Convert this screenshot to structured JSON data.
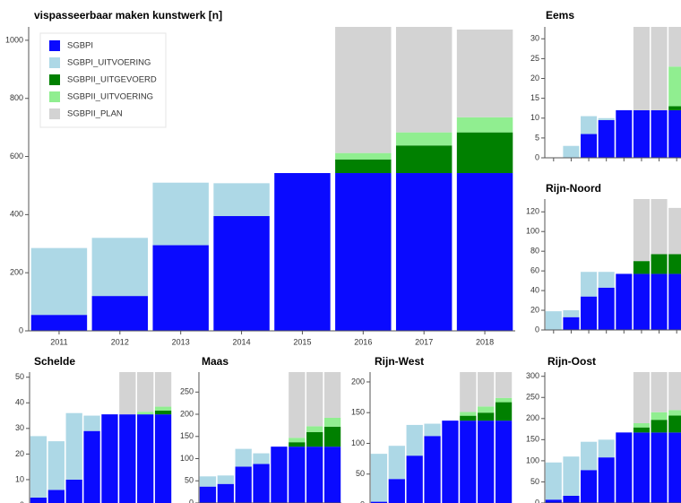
{
  "chart_data": [
    {
      "type": "bar",
      "stacked": true,
      "title": "vispasseerbaar maken kunstwerk [n]",
      "legend": "top-left",
      "categories": [
        "2011",
        "2012",
        "2013",
        "2014",
        "2015",
        "2016",
        "2017",
        "2018"
      ],
      "ylim": [
        0,
        1046
      ],
      "yticks": [
        0,
        200,
        400,
        600,
        800,
        1000
      ],
      "series": [
        {
          "name": "SGBPI",
          "color": "#0a0aff",
          "values": [
            55,
            120,
            295,
            395,
            543,
            543,
            543,
            543
          ]
        },
        {
          "name": "SGBPI_UITVOERING",
          "color": "#add8e6",
          "values": [
            230,
            200,
            215,
            113,
            0,
            0,
            0,
            0
          ]
        },
        {
          "name": "SGBPII_UITGEVOERD",
          "color": "#008000",
          "values": [
            0,
            0,
            0,
            0,
            0,
            47,
            95,
            140
          ]
        },
        {
          "name": "SGBPII_UITVOERING",
          "color": "#90ee90",
          "values": [
            0,
            0,
            0,
            0,
            0,
            22,
            45,
            52
          ]
        },
        {
          "name": "SGBPII_PLAN",
          "color": "#d3d3d3",
          "values": [
            0,
            0,
            0,
            0,
            0,
            434,
            363,
            302
          ]
        }
      ]
    },
    {
      "type": "bar",
      "stacked": true,
      "title": "Eems",
      "categories": [
        null,
        null,
        null,
        null,
        null,
        null,
        null,
        null
      ],
      "ylim": [
        0,
        33
      ],
      "yticks": [
        0,
        5,
        10,
        15,
        20,
        25,
        30
      ],
      "series": [
        {
          "color": "#0a0aff",
          "values": [
            0,
            0,
            6,
            9.5,
            12,
            12,
            12,
            12
          ]
        },
        {
          "color": "#add8e6",
          "values": [
            0,
            3,
            4.5,
            0.5,
            0,
            0,
            0,
            0
          ]
        },
        {
          "color": "#008000",
          "values": [
            0,
            0,
            0,
            0,
            0,
            0,
            0,
            1
          ]
        },
        {
          "color": "#90ee90",
          "values": [
            0,
            0,
            0,
            0,
            0,
            0,
            0,
            10
          ]
        },
        {
          "color": "#d3d3d3",
          "values": [
            0,
            0,
            0,
            0,
            0,
            21,
            21,
            10
          ]
        }
      ]
    },
    {
      "type": "bar",
      "stacked": true,
      "title": "Rijn-Noord",
      "categories": [
        null,
        null,
        null,
        null,
        null,
        null,
        null,
        null
      ],
      "ylim": [
        0,
        133
      ],
      "yticks": [
        0,
        20,
        40,
        60,
        80,
        100,
        120
      ],
      "series": [
        {
          "color": "#0a0aff",
          "values": [
            0,
            13,
            34,
            43,
            57,
            57,
            57,
            57
          ]
        },
        {
          "color": "#add8e6",
          "values": [
            19,
            7,
            25,
            16,
            0,
            0,
            0,
            0
          ]
        },
        {
          "color": "#008000",
          "values": [
            0,
            0,
            0,
            0,
            0,
            13,
            20,
            20
          ]
        },
        {
          "color": "#90ee90",
          "values": [
            0,
            0,
            0,
            0,
            0,
            0,
            0,
            0
          ]
        },
        {
          "color": "#d3d3d3",
          "values": [
            0,
            0,
            0,
            0,
            0,
            63,
            56,
            47
          ]
        }
      ]
    },
    {
      "type": "bar",
      "stacked": true,
      "title": "Schelde",
      "categories": [
        null,
        null,
        null,
        null,
        null,
        null,
        null,
        null
      ],
      "ylim": [
        0,
        52
      ],
      "yticks": [
        0,
        10,
        20,
        30,
        40,
        50
      ],
      "series": [
        {
          "color": "#0a0aff",
          "values": [
            3,
            6,
            10,
            29,
            35.5,
            35.5,
            35.5,
            35.5
          ]
        },
        {
          "color": "#add8e6",
          "values": [
            24,
            19,
            26,
            6,
            0,
            0,
            0,
            0
          ]
        },
        {
          "color": "#008000",
          "values": [
            0,
            0,
            0,
            0,
            0,
            0,
            0,
            1.5
          ]
        },
        {
          "color": "#90ee90",
          "values": [
            0,
            0,
            0,
            0,
            0,
            0,
            1,
            1.5
          ]
        },
        {
          "color": "#d3d3d3",
          "values": [
            0,
            0,
            0,
            0,
            0,
            16.5,
            15.5,
            13.5
          ]
        }
      ]
    },
    {
      "type": "bar",
      "stacked": true,
      "title": "Maas",
      "categories": [
        null,
        null,
        null,
        null,
        null,
        null,
        null,
        null
      ],
      "ylim": [
        0,
        295
      ],
      "yticks": [
        0,
        50,
        100,
        150,
        200,
        250
      ],
      "series": [
        {
          "color": "#0a0aff",
          "values": [
            37,
            43,
            82,
            88,
            127,
            127,
            127,
            127
          ]
        },
        {
          "color": "#add8e6",
          "values": [
            23,
            19,
            40,
            24,
            0,
            0,
            0,
            0
          ]
        },
        {
          "color": "#008000",
          "values": [
            0,
            0,
            0,
            0,
            0,
            10,
            33,
            45
          ]
        },
        {
          "color": "#90ee90",
          "values": [
            0,
            0,
            0,
            0,
            0,
            10,
            13,
            20
          ]
        },
        {
          "color": "#d3d3d3",
          "values": [
            0,
            0,
            0,
            0,
            0,
            148,
            122,
            103
          ]
        }
      ]
    },
    {
      "type": "bar",
      "stacked": true,
      "title": "Rijn-West",
      "categories": [
        null,
        null,
        null,
        null,
        null,
        null,
        null,
        null
      ],
      "ylim": [
        0,
        216
      ],
      "yticks": [
        0,
        50,
        100,
        150,
        200
      ],
      "series": [
        {
          "color": "#0a0aff",
          "values": [
            5,
            42,
            80,
            112,
            137,
            137,
            137,
            137
          ]
        },
        {
          "color": "#add8e6",
          "values": [
            78,
            54,
            50,
            20,
            0,
            0,
            0,
            0
          ]
        },
        {
          "color": "#008000",
          "values": [
            0,
            0,
            0,
            0,
            0,
            8,
            13,
            30
          ]
        },
        {
          "color": "#90ee90",
          "values": [
            0,
            0,
            0,
            0,
            0,
            6,
            10,
            7
          ]
        },
        {
          "color": "#d3d3d3",
          "values": [
            0,
            0,
            0,
            0,
            0,
            65,
            56,
            42
          ]
        }
      ]
    },
    {
      "type": "bar",
      "stacked": true,
      "title": "Rijn-Oost",
      "categories": [
        null,
        null,
        null,
        null,
        null,
        null,
        null,
        null
      ],
      "ylim": [
        0,
        310
      ],
      "yticks": [
        0,
        50,
        100,
        150,
        200,
        250,
        300
      ],
      "series": [
        {
          "color": "#0a0aff",
          "values": [
            8,
            17,
            78,
            108,
            167,
            167,
            167,
            167
          ]
        },
        {
          "color": "#add8e6",
          "values": [
            88,
            93,
            67,
            42,
            0,
            0,
            0,
            0
          ]
        },
        {
          "color": "#008000",
          "values": [
            0,
            0,
            0,
            0,
            0,
            12,
            30,
            40
          ]
        },
        {
          "color": "#90ee90",
          "values": [
            0,
            0,
            0,
            0,
            0,
            10,
            18,
            13
          ]
        },
        {
          "color": "#d3d3d3",
          "values": [
            0,
            0,
            0,
            0,
            0,
            121,
            95,
            90
          ]
        }
      ]
    }
  ]
}
